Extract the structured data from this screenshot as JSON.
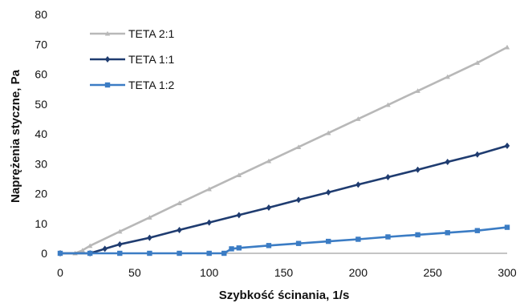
{
  "chart_data": {
    "type": "line",
    "title": "",
    "xlabel": "Szybkość ścinania, 1/s",
    "ylabel": "Naprężenia styczne, Pa",
    "xlim": [
      0,
      300
    ],
    "ylim": [
      0,
      80
    ],
    "xticks": [
      0,
      50,
      100,
      150,
      200,
      250,
      300
    ],
    "yticks": [
      0,
      10,
      20,
      30,
      40,
      50,
      60,
      70,
      80
    ],
    "grid": false,
    "legend_position": "top-left",
    "series": [
      {
        "name": "TETA 2:1",
        "color": "#b8b8b8",
        "marker": "triangle",
        "x": [
          0,
          10,
          15,
          20,
          40,
          60,
          80,
          100,
          120,
          140,
          160,
          180,
          200,
          220,
          240,
          260,
          280,
          300
        ],
        "y": [
          0,
          0,
          1,
          2.5,
          7.3,
          12,
          16.8,
          21.5,
          26.2,
          30.9,
          35.6,
          40.3,
          45.0,
          49.7,
          54.4,
          59.1,
          63.8,
          69
        ]
      },
      {
        "name": "TETA 1:1",
        "color": "#1f3c70",
        "marker": "diamond",
        "x": [
          0,
          20,
          30,
          40,
          60,
          80,
          100,
          120,
          140,
          160,
          180,
          200,
          220,
          240,
          260,
          280,
          300
        ],
        "y": [
          0,
          0,
          1.5,
          3,
          5.2,
          7.8,
          10.3,
          12.8,
          15.3,
          17.9,
          20.4,
          23.0,
          25.5,
          28.0,
          30.6,
          33.1,
          36
        ]
      },
      {
        "name": "TETA 1:2",
        "color": "#3b7cc4",
        "marker": "square",
        "x": [
          0,
          20,
          40,
          60,
          80,
          100,
          110,
          115,
          120,
          140,
          160,
          180,
          200,
          220,
          240,
          260,
          280,
          300
        ],
        "y": [
          0,
          0,
          0,
          0,
          0,
          0,
          0,
          1.5,
          1.8,
          2.6,
          3.3,
          4.0,
          4.7,
          5.5,
          6.2,
          6.9,
          7.6,
          8.7
        ]
      }
    ]
  }
}
